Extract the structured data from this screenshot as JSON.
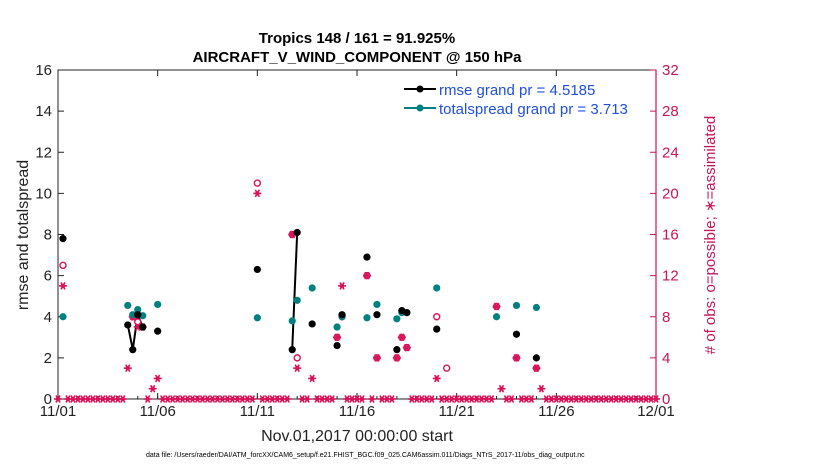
{
  "chart_data": {
    "type": "scatter",
    "title": "Tropics 148 / 161 = 91.925%",
    "subtitle": "AIRCRAFT_V_WIND_COMPONENT @ 150 hPa",
    "xlabel": "Nov.01,2017 00:00:00 start",
    "ylabel": "rmse and totalspread",
    "y2label": "# of obs: o=possible; ∗=assimilated",
    "xlim": [
      0,
      30
    ],
    "ylim": [
      0,
      16
    ],
    "y2lim": [
      0,
      32
    ],
    "x_ticks": [
      0,
      5,
      10,
      15,
      20,
      25,
      30
    ],
    "x_tick_labels": [
      "11/01",
      "11/06",
      "11/11",
      "11/16",
      "11/21",
      "11/26",
      "12/01"
    ],
    "y_ticks": [
      "0",
      "2",
      "4",
      "6",
      "8",
      "10",
      "12",
      "14",
      "16"
    ],
    "y2_ticks": [
      "0",
      "4",
      "8",
      "12",
      "16",
      "20",
      "24",
      "28",
      "32"
    ],
    "colors": {
      "rmse": "#000000",
      "spread": "#00807f",
      "obs": "#d9135a",
      "legend_text": "#1f4fe0"
    },
    "series": [
      {
        "name": "rmse grand pr = 4.5185",
        "axis": "left",
        "points": [
          [
            0.25,
            7.8
          ],
          [
            3.5,
            3.6
          ],
          [
            3.75,
            2.4
          ],
          [
            4.0,
            4.1
          ],
          [
            4.25,
            3.5
          ],
          [
            5.0,
            3.3
          ],
          [
            10.0,
            6.3
          ],
          [
            11.75,
            2.4
          ],
          [
            12.0,
            8.1
          ],
          [
            12.75,
            3.65
          ],
          [
            14.0,
            2.6
          ],
          [
            14.25,
            4.1
          ],
          [
            15.5,
            6.9
          ],
          [
            16.0,
            4.1
          ],
          [
            17.0,
            2.4
          ],
          [
            17.25,
            4.3
          ],
          [
            17.5,
            4.2
          ],
          [
            19.0,
            3.4
          ],
          [
            23.0,
            3.15
          ],
          [
            24.0,
            2.0
          ]
        ],
        "segments": [
          [
            [
              3.5,
              3.6
            ],
            [
              3.75,
              2.4
            ],
            [
              4.0,
              4.1
            ],
            [
              4.25,
              3.5
            ]
          ],
          [
            [
              11.75,
              2.4
            ],
            [
              12.0,
              8.1
            ]
          ]
        ]
      },
      {
        "name": "totalspread grand pr = 3.713",
        "axis": "left",
        "points": [
          [
            0.25,
            4.0
          ],
          [
            3.5,
            4.55
          ],
          [
            3.75,
            4.1
          ],
          [
            4.0,
            4.35
          ],
          [
            4.25,
            4.05
          ],
          [
            5.0,
            4.6
          ],
          [
            10.0,
            3.95
          ],
          [
            11.75,
            3.8
          ],
          [
            12.0,
            4.8
          ],
          [
            12.75,
            5.4
          ],
          [
            14.0,
            3.5
          ],
          [
            14.25,
            4.0
          ],
          [
            15.5,
            3.95
          ],
          [
            16.0,
            4.6
          ],
          [
            17.0,
            3.9
          ],
          [
            17.25,
            4.2
          ],
          [
            17.5,
            4.2
          ],
          [
            19.0,
            5.4
          ],
          [
            22.0,
            4.0
          ],
          [
            23.0,
            4.55
          ],
          [
            24.0,
            4.45
          ]
        ]
      },
      {
        "name": "possible",
        "axis": "right",
        "marker": "o",
        "points": [
          [
            0.25,
            13
          ],
          [
            3.75,
            8
          ],
          [
            4.0,
            7.5
          ],
          [
            4.25,
            7
          ],
          [
            10.0,
            21
          ],
          [
            11.75,
            16
          ],
          [
            12.0,
            4
          ],
          [
            14.0,
            6
          ],
          [
            14.25,
            8
          ],
          [
            15.5,
            12
          ],
          [
            16.0,
            4
          ],
          [
            17.0,
            4
          ],
          [
            17.25,
            6
          ],
          [
            17.5,
            5
          ],
          [
            19.0,
            8
          ],
          [
            19.5,
            3
          ],
          [
            22.0,
            9
          ],
          [
            23.0,
            4
          ],
          [
            24.0,
            3
          ]
        ]
      },
      {
        "name": "assimilated",
        "axis": "right",
        "marker": "*",
        "points": [
          [
            0.25,
            11
          ],
          [
            3.5,
            3
          ],
          [
            3.75,
            8
          ],
          [
            4.0,
            7
          ],
          [
            4.25,
            7
          ],
          [
            4.75,
            1
          ],
          [
            5.0,
            2
          ],
          [
            10.0,
            20
          ],
          [
            11.75,
            16
          ],
          [
            12.0,
            3
          ],
          [
            12.75,
            2
          ],
          [
            14.0,
            6
          ],
          [
            14.25,
            11
          ],
          [
            15.5,
            12
          ],
          [
            16.0,
            4
          ],
          [
            17.0,
            4
          ],
          [
            17.25,
            6
          ],
          [
            17.5,
            5
          ],
          [
            19.0,
            2
          ],
          [
            22.0,
            9
          ],
          [
            22.25,
            1
          ],
          [
            23.0,
            4
          ],
          [
            24.0,
            3
          ],
          [
            24.25,
            1
          ]
        ]
      }
    ]
  },
  "legend": {
    "rmse": "rmse grand pr = 4.5185",
    "spread": "totalspread grand pr = 3.713"
  },
  "footer": "data file: /Users/raeder/DAI/ATM_forcXX/CAM6_setup/f.e21.FHIST_BGC.f09_025.CAM6assim.011/Diags_NTrS_2017-11/obs_diag_output.nc"
}
